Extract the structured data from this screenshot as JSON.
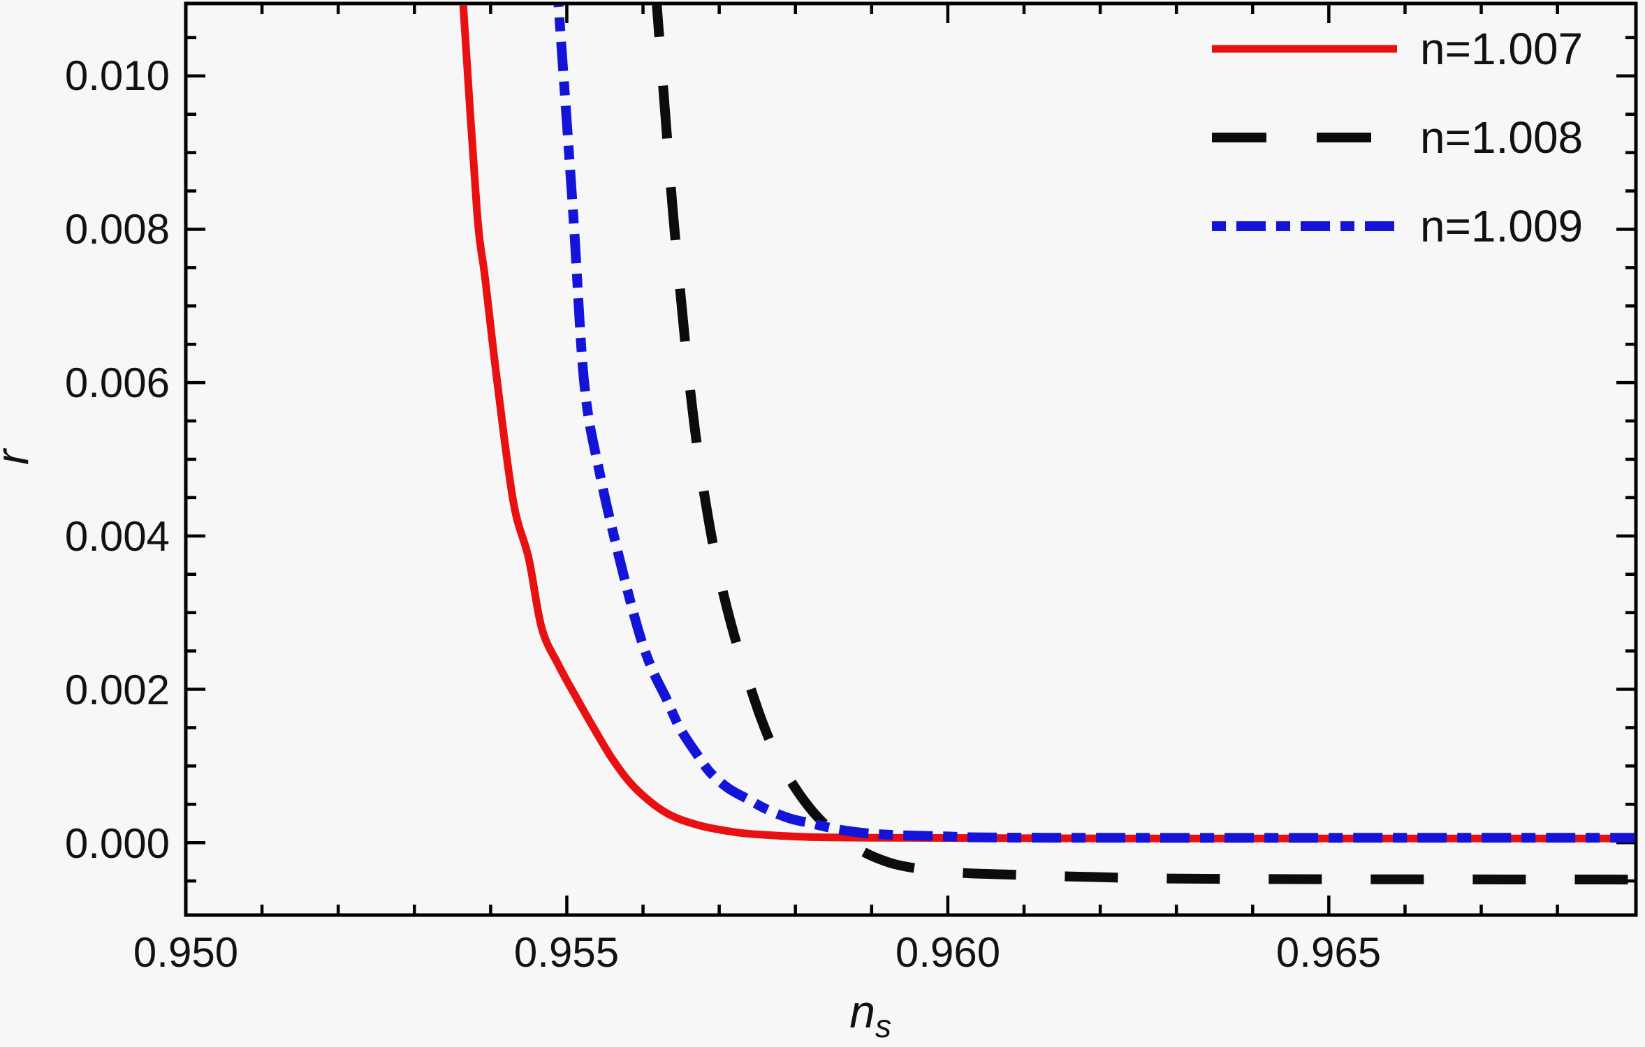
{
  "figure": {
    "background": "#f7f7f7",
    "frame_color": "#000000",
    "text_color": "#111111"
  },
  "chart_data": {
    "type": "line",
    "title": "",
    "xlabel_base": "n",
    "xlabel_sub": "s",
    "ylabel": "r",
    "xlim": [
      0.95,
      0.96903
    ],
    "ylim": [
      -0.000945,
      0.010945
    ],
    "grid": false,
    "frame_ticks": "all-sides-inward",
    "legend_position": "top-right-inside",
    "x_major_ticks": [
      0.95,
      0.955,
      0.96,
      0.965
    ],
    "x_major_labels": [
      "0.950",
      "0.955",
      "0.960",
      "0.965"
    ],
    "x_minor_ticks": [
      0.951,
      0.952,
      0.953,
      0.954,
      0.956,
      0.957,
      0.958,
      0.959,
      0.961,
      0.962,
      0.963,
      0.964,
      0.966,
      0.967,
      0.968
    ],
    "y_major_ticks": [
      0.01,
      0.008,
      0.006,
      0.004,
      0.002,
      0.0
    ],
    "y_major_labels": [
      "0.010",
      "0.008",
      "0.006",
      "0.004",
      "0.002",
      "0.000"
    ],
    "y_minor_ticks": [
      0.0105,
      0.0095,
      0.009,
      0.0085,
      0.0075,
      0.007,
      0.0065,
      0.0055,
      0.005,
      0.0045,
      0.0035,
      0.003,
      0.0025,
      0.0015,
      0.001,
      0.0005,
      -0.0005
    ],
    "series": [
      {
        "name": "n=1.007",
        "color": "#e81010",
        "line_style": "solid",
        "points": [
          [
            0.95362,
            0.0112
          ],
          [
            0.95364,
            0.010936
          ],
          [
            0.95382,
            0.008255
          ],
          [
            0.95393,
            0.007345
          ],
          [
            0.95409,
            0.005982
          ],
          [
            0.9543,
            0.004436
          ],
          [
            0.9545,
            0.003709
          ],
          [
            0.95467,
            0.0028
          ],
          [
            0.95489,
            0.002318
          ],
          [
            0.95511,
            0.001918
          ],
          [
            0.95535,
            0.0015
          ],
          [
            0.95561,
            0.001073
          ],
          [
            0.9559,
            0.000709
          ],
          [
            0.9563,
            0.000391
          ],
          [
            0.95673,
            0.000227
          ],
          [
            0.95721,
            0.000136
          ],
          [
            0.95762,
            0.0001
          ],
          [
            0.95819,
            7.3e-05
          ],
          [
            0.95902,
            6.4e-05
          ],
          [
            0.96223,
            5.5e-05
          ],
          [
            0.96903,
            5.5e-05
          ]
        ]
      },
      {
        "name": "n=1.008",
        "color": "#0c0c0c",
        "line_style": "dashed",
        "points": [
          [
            0.95616,
            0.0112
          ],
          [
            0.95618,
            0.010936
          ],
          [
            0.95629,
            0.009527
          ],
          [
            0.95639,
            0.008255
          ],
          [
            0.9565,
            0.007073
          ],
          [
            0.95661,
            0.005982
          ],
          [
            0.95673,
            0.005027
          ],
          [
            0.95686,
            0.004209
          ],
          [
            0.957,
            0.003482
          ],
          [
            0.95717,
            0.0028
          ],
          [
            0.95735,
            0.002209
          ],
          [
            0.95755,
            0.001618
          ],
          [
            0.95774,
            0.001164
          ],
          [
            0.95797,
            0.000755
          ],
          [
            0.95824,
            0.000391
          ],
          [
            0.95852,
            0.000118
          ],
          [
            0.95879,
            -6.4e-05
          ],
          [
            0.95911,
            -0.000218
          ],
          [
            0.95948,
            -0.000318
          ],
          [
            0.96012,
            -0.000391
          ],
          [
            0.96085,
            -0.000418
          ],
          [
            0.96177,
            -0.000445
          ],
          [
            0.9636,
            -0.000473
          ],
          [
            0.96903,
            -0.000482
          ]
        ]
      },
      {
        "name": "n=1.009",
        "color": "#1414d8",
        "line_style": "dashdot",
        "points": [
          [
            0.95487,
            0.0112
          ],
          [
            0.95489,
            0.010936
          ],
          [
            0.95508,
            0.008255
          ],
          [
            0.95523,
            0.005982
          ],
          [
            0.95543,
            0.004827
          ],
          [
            0.95569,
            0.003709
          ],
          [
            0.95593,
            0.0028
          ],
          [
            0.95611,
            0.002282
          ],
          [
            0.9563,
            0.001891
          ],
          [
            0.95648,
            0.0015
          ],
          [
            0.9567,
            0.001164
          ],
          [
            0.95688,
            0.000918
          ],
          [
            0.95712,
            0.000709
          ],
          [
            0.9574,
            0.000555
          ],
          [
            0.95762,
            0.000436
          ],
          [
            0.95792,
            0.000318
          ],
          [
            0.95819,
            0.000255
          ],
          [
            0.95861,
            0.000164
          ],
          [
            0.95911,
            0.000109
          ],
          [
            0.95994,
            8.2e-05
          ],
          [
            0.96131,
            6.4e-05
          ],
          [
            0.96903,
            6.4e-05
          ]
        ]
      }
    ]
  }
}
